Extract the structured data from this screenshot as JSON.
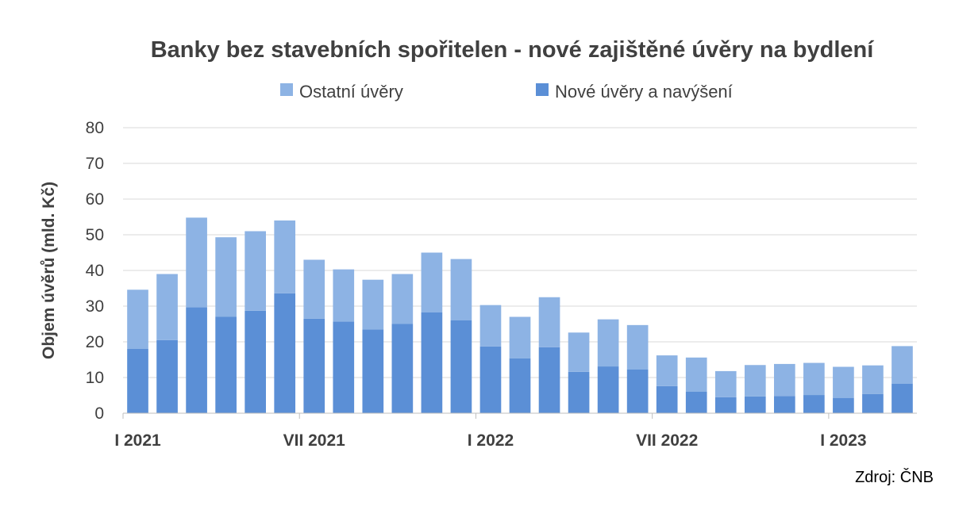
{
  "chart_data": {
    "type": "bar",
    "stacked": true,
    "title": "Banky bez stavebních spořitelen - nové zajištěné úvěry na bydlení",
    "ylabel": "Objem úvěrů (mld. Kč)",
    "xlabel": "",
    "ylim": [
      0,
      80
    ],
    "yticks": [
      0,
      10,
      20,
      30,
      40,
      50,
      60,
      70,
      80
    ],
    "grid": true,
    "legend_position": "top",
    "x_tick_labels": [
      {
        "index": 0,
        "label": "I 2021"
      },
      {
        "index": 6,
        "label": "VII 2021"
      },
      {
        "index": 12,
        "label": "I 2022"
      },
      {
        "index": 18,
        "label": "VII 2022"
      },
      {
        "index": 24,
        "label": "I 2023"
      }
    ],
    "categories": [
      "I 2021",
      "II 2021",
      "III 2021",
      "IV 2021",
      "V 2021",
      "VI 2021",
      "VII 2021",
      "VIII 2021",
      "IX 2021",
      "X 2021",
      "XI 2021",
      "XII 2021",
      "I 2022",
      "II 2022",
      "III 2022",
      "IV 2022",
      "V 2022",
      "VI 2022",
      "VII 2022",
      "VIII 2022",
      "IX 2022",
      "X 2022",
      "XI 2022",
      "XII 2022",
      "I 2023",
      "II 2023",
      "III 2023"
    ],
    "series": [
      {
        "name": "Nové úvěry a navýšení",
        "color": "#5B8FD6",
        "values": [
          18.0,
          20.5,
          29.7,
          27.0,
          28.7,
          33.6,
          26.5,
          25.7,
          23.5,
          25.0,
          28.3,
          26.0,
          18.7,
          15.4,
          18.5,
          11.6,
          13.1,
          12.3,
          7.6,
          6.0,
          4.5,
          4.7,
          4.8,
          5.1,
          4.3,
          5.4,
          8.3
        ]
      },
      {
        "name": "Ostatní úvěry",
        "color": "#8DB3E4",
        "values": [
          16.6,
          18.5,
          25.1,
          22.3,
          22.3,
          20.4,
          16.5,
          14.6,
          13.9,
          14.0,
          16.7,
          17.2,
          11.6,
          11.6,
          14.0,
          11.0,
          13.2,
          12.4,
          8.6,
          9.6,
          7.3,
          8.8,
          9.0,
          9.0,
          8.7,
          8.0,
          10.5
        ]
      }
    ],
    "legend": [
      {
        "label": "Ostatní úvěry",
        "color": "#8DB3E4"
      },
      {
        "label": "Nové úvěry a navýšení",
        "color": "#5B8FD6"
      }
    ],
    "source": "Zdroj: ČNB"
  }
}
